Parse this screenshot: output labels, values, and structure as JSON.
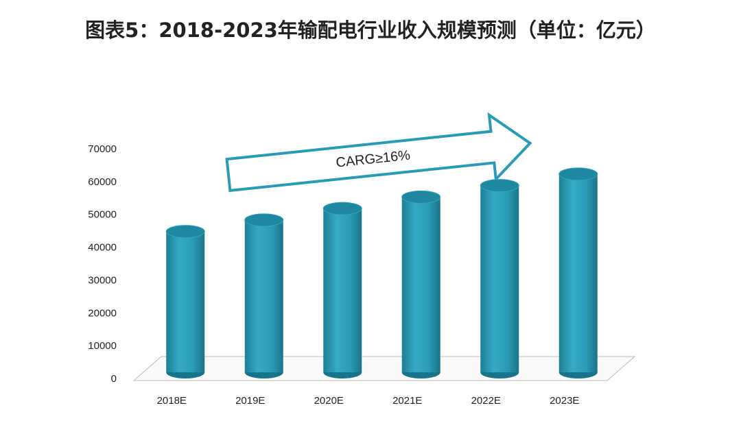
{
  "chart_data": {
    "type": "bar",
    "title": "图表5：2018-2023年输配电行业收入规模预测（单位：亿元）",
    "categories": [
      "2018E",
      "2019E",
      "2020E",
      "2021E",
      "2022E",
      "2023E"
    ],
    "values": [
      45000,
      48500,
      52000,
      55500,
      59000,
      62500
    ],
    "color": "#2a9bb5",
    "ylim": [
      0,
      70000
    ],
    "yticks": [
      0,
      10000,
      20000,
      30000,
      40000,
      50000,
      60000,
      70000
    ],
    "annotation": "CARG≥16%"
  }
}
